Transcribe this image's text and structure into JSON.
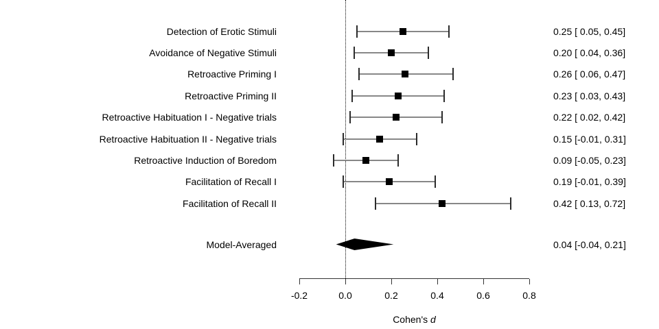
{
  "chart_data": {
    "type": "forest",
    "xlabel_prefix": "Cohen's ",
    "xlabel_italic": "d",
    "xlim": [
      -0.2,
      0.8
    ],
    "x_ticks": [
      -0.2,
      0.0,
      0.2,
      0.4,
      0.6,
      0.8
    ],
    "x_tick_labels": [
      "-0.2",
      "0.0",
      "0.2",
      "0.4",
      "0.6",
      "0.8"
    ],
    "reference_line": 0.0,
    "grid": false,
    "legend": "none",
    "studies": [
      {
        "label": "Detection of Erotic Stimuli",
        "estimate": 0.25,
        "ci_lower": 0.05,
        "ci_upper": 0.45,
        "value_text": "0.25 [ 0.05, 0.45]"
      },
      {
        "label": "Avoidance of Negative Stimuli",
        "estimate": 0.2,
        "ci_lower": 0.04,
        "ci_upper": 0.36,
        "value_text": "0.20 [ 0.04, 0.36]"
      },
      {
        "label": "Retroactive Priming I",
        "estimate": 0.26,
        "ci_lower": 0.06,
        "ci_upper": 0.47,
        "value_text": "0.26 [ 0.06, 0.47]"
      },
      {
        "label": "Retroactive Priming II",
        "estimate": 0.23,
        "ci_lower": 0.03,
        "ci_upper": 0.43,
        "value_text": "0.23 [ 0.03, 0.43]"
      },
      {
        "label": "Retroactive Habituation I - Negative trials",
        "estimate": 0.22,
        "ci_lower": 0.02,
        "ci_upper": 0.42,
        "value_text": "0.22 [ 0.02, 0.42]"
      },
      {
        "label": "Retroactive Habituation II - Negative trials",
        "estimate": 0.15,
        "ci_lower": -0.01,
        "ci_upper": 0.31,
        "value_text": "0.15 [-0.01, 0.31]"
      },
      {
        "label": "Retroactive Induction of Boredom",
        "estimate": 0.09,
        "ci_lower": -0.05,
        "ci_upper": 0.23,
        "value_text": "0.09 [-0.05, 0.23]"
      },
      {
        "label": "Facilitation of Recall I",
        "estimate": 0.19,
        "ci_lower": -0.01,
        "ci_upper": 0.39,
        "value_text": "0.19 [-0.01, 0.39]"
      },
      {
        "label": "Facilitation of Recall II",
        "estimate": 0.42,
        "ci_lower": 0.13,
        "ci_upper": 0.72,
        "value_text": "0.42 [ 0.13, 0.72]"
      }
    ],
    "summary": {
      "label": "Model-Averaged",
      "estimate": 0.04,
      "ci_lower": -0.04,
      "ci_upper": 0.21,
      "value_text": "0.04 [-0.04, 0.21]"
    },
    "colors": {
      "ci_line": "#878787",
      "ci_cap": "#2b2b2b",
      "marker": "#000000",
      "diamond": "#000000",
      "text": "#000000"
    }
  }
}
